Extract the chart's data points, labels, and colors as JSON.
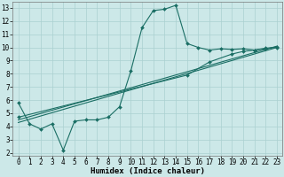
{
  "xlabel": "Humidex (Indice chaleur)",
  "background_color": "#cce8e8",
  "grid_color": "#aad0d0",
  "line_color": "#1a6e64",
  "xlim": [
    -0.5,
    23.5
  ],
  "ylim": [
    1.8,
    13.5
  ],
  "xticks": [
    0,
    1,
    2,
    3,
    4,
    5,
    6,
    7,
    8,
    9,
    10,
    11,
    12,
    13,
    14,
    15,
    16,
    17,
    18,
    19,
    20,
    21,
    22,
    23
  ],
  "yticks": [
    2,
    3,
    4,
    5,
    6,
    7,
    8,
    9,
    10,
    11,
    12,
    13
  ],
  "series1_x": [
    0,
    1,
    2,
    3,
    4,
    5,
    6,
    7,
    8,
    9,
    10,
    11,
    12,
    13,
    14,
    15,
    16,
    17,
    18,
    19,
    20,
    21,
    22,
    23
  ],
  "series1_y": [
    5.8,
    4.2,
    3.8,
    4.2,
    2.2,
    4.4,
    4.5,
    4.5,
    4.7,
    5.5,
    8.2,
    11.5,
    12.8,
    12.9,
    13.2,
    10.3,
    10.0,
    9.8,
    9.9,
    9.85,
    9.9,
    9.8,
    9.95,
    10.0
  ],
  "series2_x": [
    0,
    23
  ],
  "series2_y": [
    4.3,
    10.0
  ],
  "series3_x": [
    0,
    23
  ],
  "series3_y": [
    4.5,
    10.1
  ],
  "series4_x": [
    0,
    15,
    17,
    19,
    20,
    21,
    22,
    23
  ],
  "series4_y": [
    4.7,
    7.9,
    8.9,
    9.5,
    9.7,
    9.8,
    9.9,
    10.05
  ],
  "marker_size": 2,
  "line_width": 0.8,
  "font_size_ticks": 5.5,
  "font_size_label": 6.5
}
